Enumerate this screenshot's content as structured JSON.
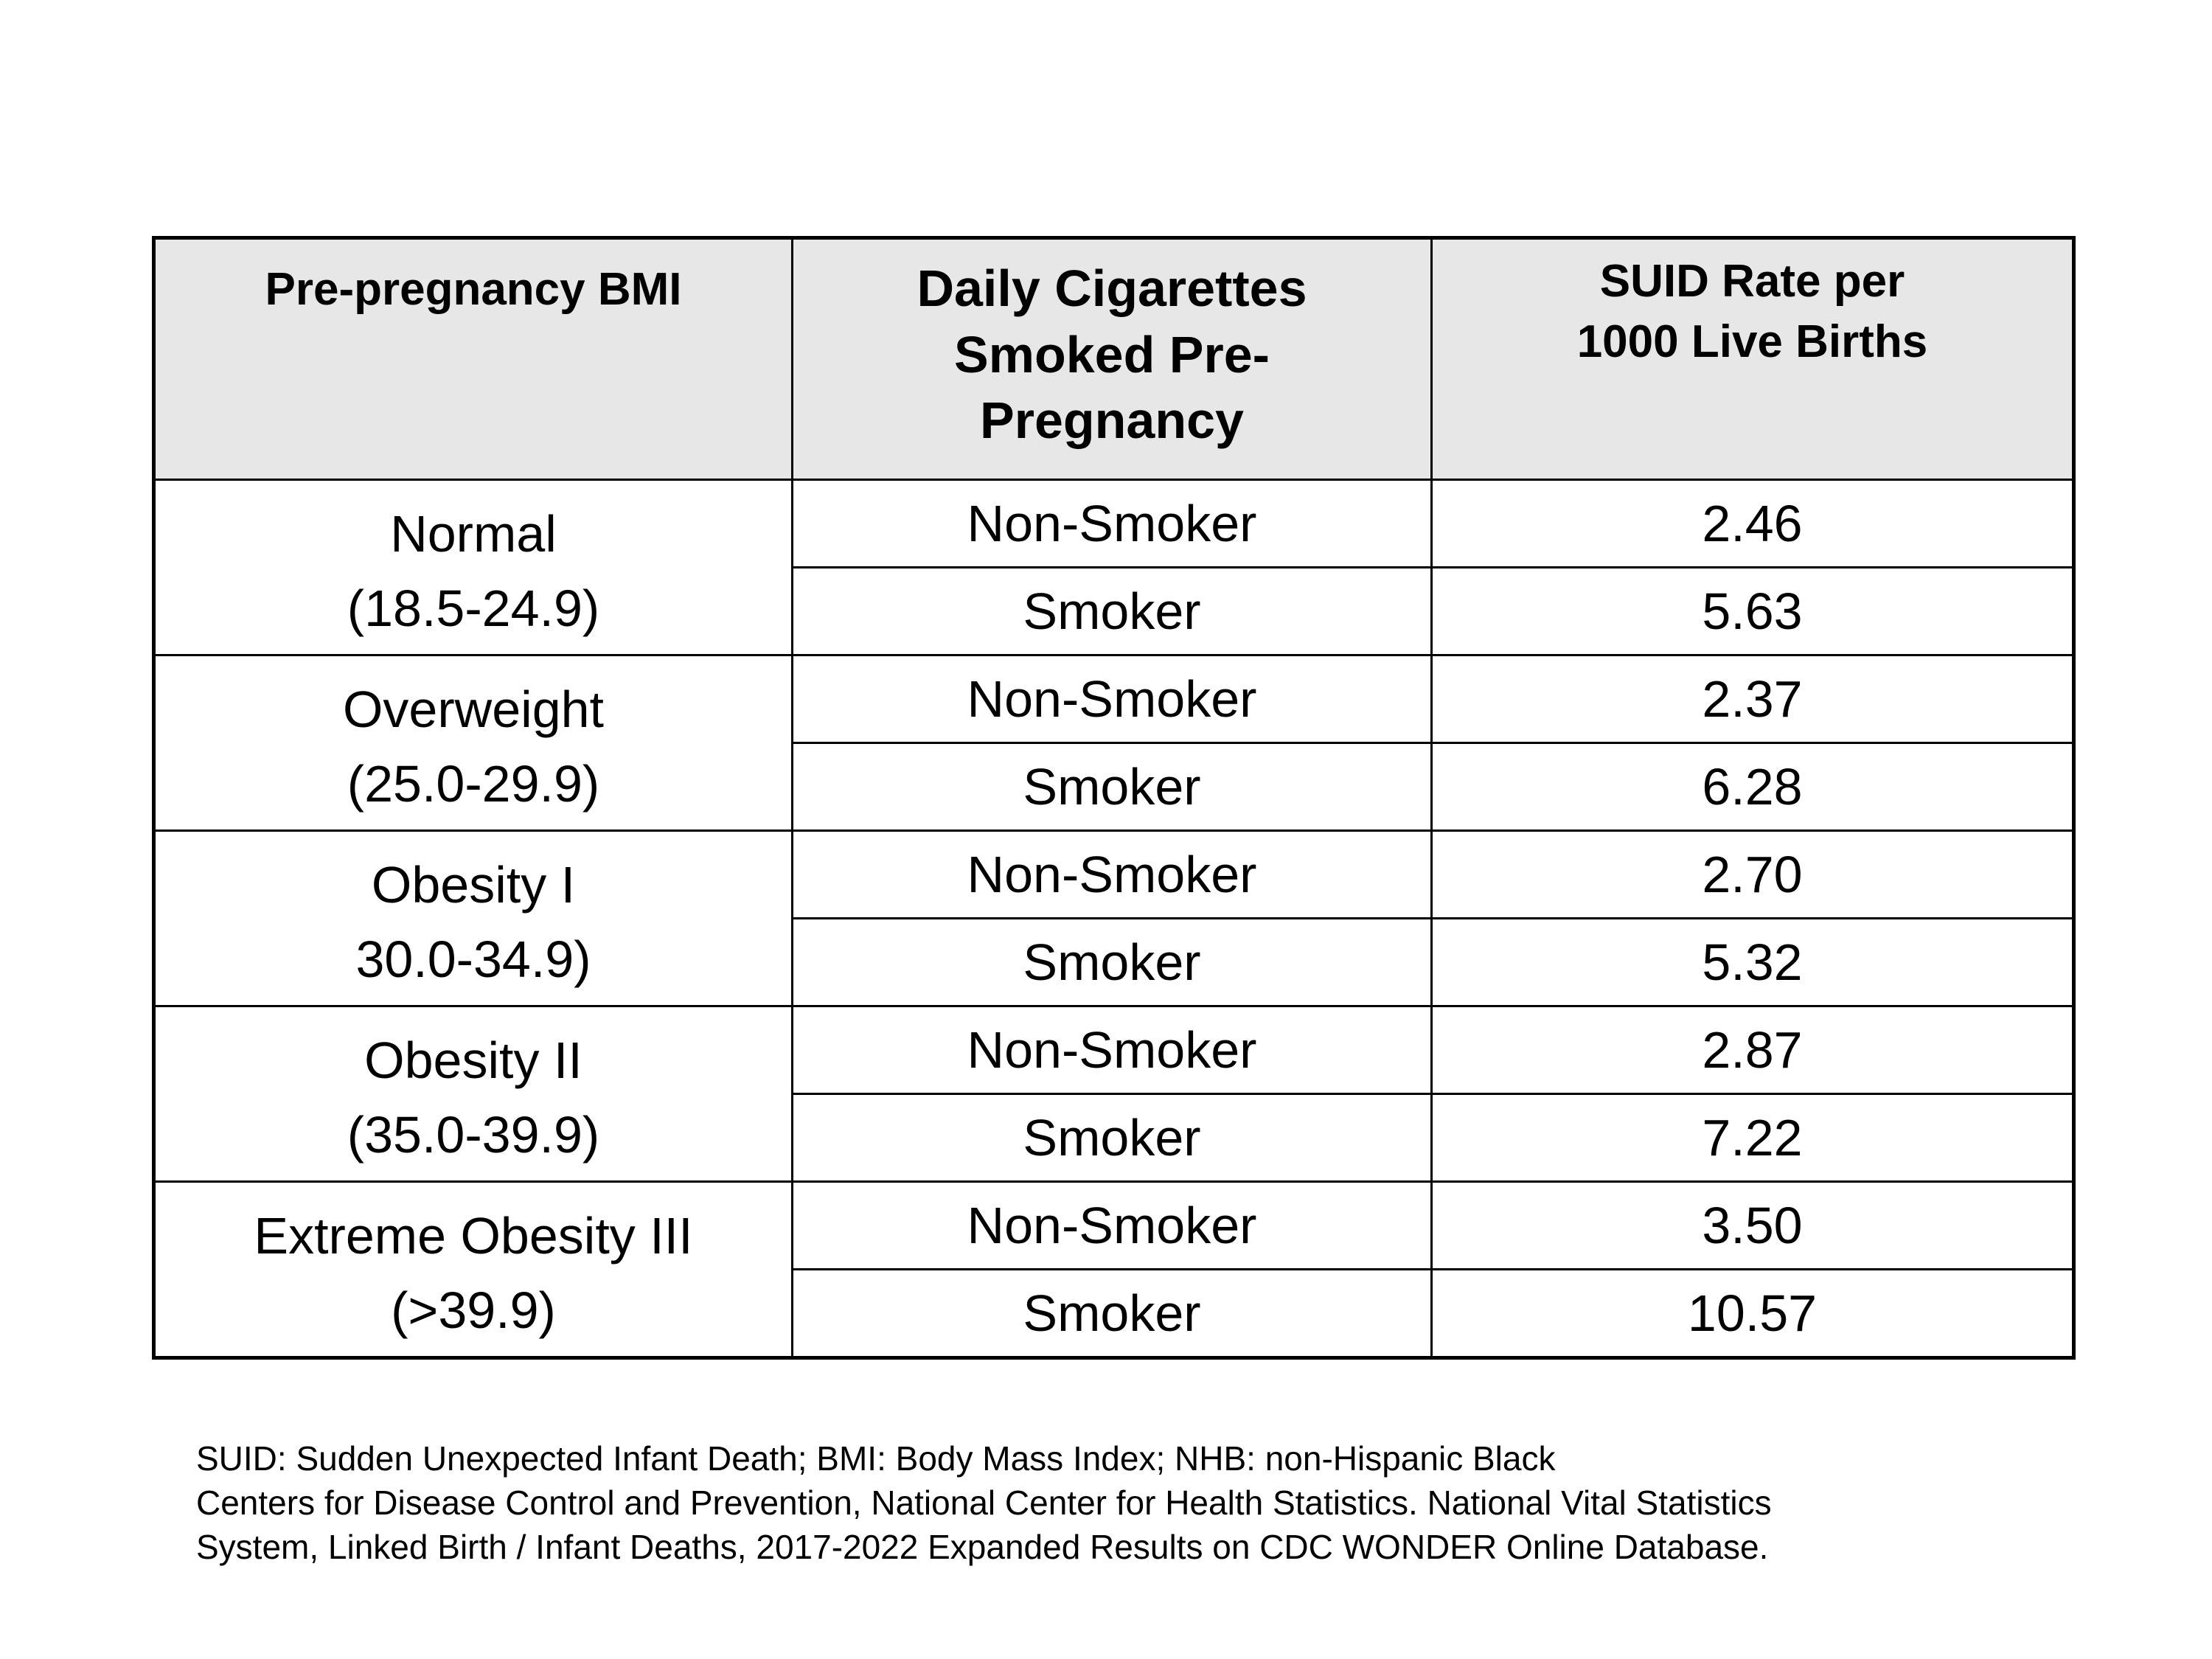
{
  "table": {
    "headers": {
      "bmi": "Pre-pregnancy BMI",
      "cigarettes": [
        "Daily Cigarettes",
        "Smoked Pre-",
        "Pregnancy"
      ],
      "rate": [
        "SUID Rate per",
        "1000 Live Births"
      ]
    },
    "groups": [
      {
        "bmi_label": "Normal",
        "bmi_range": "(18.5-24.9)",
        "rows": [
          {
            "status": "Non-Smoker",
            "rate": "2.46"
          },
          {
            "status": "Smoker",
            "rate": "5.63"
          }
        ]
      },
      {
        "bmi_label": "Overweight",
        "bmi_range": "(25.0-29.9)",
        "rows": [
          {
            "status": "Non-Smoker",
            "rate": "2.37"
          },
          {
            "status": "Smoker",
            "rate": "6.28"
          }
        ]
      },
      {
        "bmi_label": "Obesity I",
        "bmi_range": "30.0-34.9)",
        "rows": [
          {
            "status": "Non-Smoker",
            "rate": "2.70"
          },
          {
            "status": "Smoker",
            "rate": "5.32"
          }
        ]
      },
      {
        "bmi_label": "Obesity II",
        "bmi_range": "(35.0-39.9)",
        "rows": [
          {
            "status": "Non-Smoker",
            "rate": "2.87"
          },
          {
            "status": "Smoker",
            "rate": "7.22"
          }
        ]
      },
      {
        "bmi_label": "Extreme Obesity III",
        "bmi_range": "(>39.9)",
        "rows": [
          {
            "status": "Non-Smoker",
            "rate": "3.50"
          },
          {
            "status": "Smoker",
            "rate": "10.57"
          }
        ]
      }
    ]
  },
  "notes": [
    "SUID: Sudden Unexpected Infant Death; BMI: Body Mass Index; NHB: non-Hispanic Black",
    "Centers for Disease Control and Prevention, National Center for Health Statistics. National Vital Statistics",
    "System, Linked Birth / Infant Deaths, 2017-2022 Expanded Results on CDC WONDER Online Database."
  ]
}
